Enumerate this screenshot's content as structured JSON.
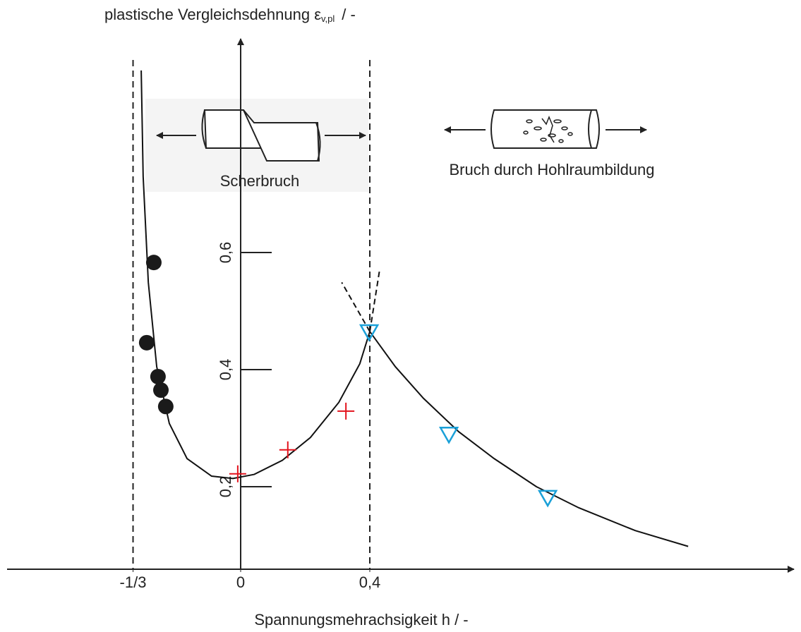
{
  "chart_data": {
    "type": "scatter",
    "y_label": {
      "text": "plastische Vergleichsdehnung ε",
      "subscript": "v,pl",
      "suffix": "/ -"
    },
    "x_label": "Spannungsmehrachsigkeit h  / -",
    "annotations": [
      "Scherbruch",
      "Bruch durch Hohlraumbildung"
    ],
    "xlim": [
      -0.7235,
      1.7136
    ],
    "ylim": [
      0.059,
      0.9651
    ],
    "xticks": [
      {
        "value": -0.3333,
        "label": "-1/3"
      },
      0,
      {
        "value": 0.4,
        "label": "0,4"
      }
    ],
    "yticks": [
      {
        "value": 0.6,
        "label": "0,6"
      },
      {
        "value": 0.4,
        "label": "0,4"
      },
      {
        "value": 0.2,
        "label": "0,2"
      }
    ],
    "reference_lines": [
      -0.3333,
      0.4
    ],
    "series": [
      {
        "style": "line",
        "color": "#111111",
        "x": [
          -0.308,
          -0.302,
          -0.286,
          -0.26,
          -0.221,
          -0.166,
          -0.09,
          -0.024,
          0.042,
          0.129,
          0.216,
          0.304,
          0.369,
          0.4
        ],
        "values": [
          0.911,
          0.73,
          0.549,
          0.405,
          0.308,
          0.248,
          0.218,
          0.214,
          0.221,
          0.245,
          0.284,
          0.344,
          0.41,
          0.465
        ]
      },
      {
        "style": "line",
        "color": "#111111",
        "x": [
          0.4,
          0.479,
          0.566,
          0.675,
          0.785,
          0.916,
          1.047,
          1.222,
          1.386
        ],
        "values": [
          0.465,
          0.405,
          0.351,
          0.294,
          0.248,
          0.2,
          0.164,
          0.125,
          0.098
        ]
      },
      {
        "style": "dashed",
        "color": "#111111",
        "x": [
          0.4,
          0.313
        ],
        "values": [
          0.465,
          0.549
        ]
      },
      {
        "style": "dashed",
        "color": "#111111",
        "x": [
          0.4,
          0.43
        ],
        "values": [
          0.465,
          0.569
        ]
      },
      {
        "style": "circle",
        "color": "#1a1a1a",
        "x": [
          -0.269,
          -0.291,
          -0.256,
          -0.247,
          -0.232
        ],
        "values": [
          0.583,
          0.446,
          0.388,
          0.365,
          0.337
        ]
      },
      {
        "style": "plus",
        "color": "#e3141e",
        "x": [
          -0.009,
          0.146,
          0.326
        ],
        "values": [
          0.222,
          0.263,
          0.329
        ]
      },
      {
        "style": "triangle",
        "color": "#1aa0d8",
        "x": [
          0.398,
          0.645,
          0.951
        ],
        "values": [
          0.465,
          0.29,
          0.182
        ]
      }
    ]
  }
}
